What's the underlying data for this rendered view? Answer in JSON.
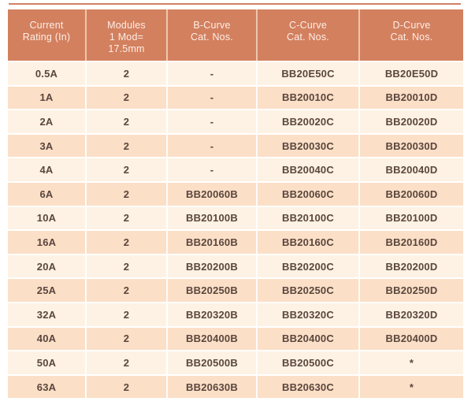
{
  "page": {
    "background": "#ffffff",
    "top_rule_color": "#d28165"
  },
  "table": {
    "colors": {
      "header_bg": "#d3805f",
      "header_text": "#fdeee6",
      "row_light": "#fdf2e4",
      "row_dark": "#fbdfc7",
      "data_text": "#5a463d"
    },
    "columns": [
      {
        "id": "current-rating",
        "lines": [
          "Current",
          "Rating (In)"
        ]
      },
      {
        "id": "modules",
        "lines": [
          "Modules",
          "1 Mod=",
          "17.5mm"
        ]
      },
      {
        "id": "b-curve",
        "lines": [
          "B-Curve",
          "Cat. Nos."
        ]
      },
      {
        "id": "c-curve",
        "lines": [
          "C-Curve",
          "Cat. Nos."
        ]
      },
      {
        "id": "d-curve",
        "lines": [
          "D-Curve",
          "Cat. Nos."
        ]
      }
    ],
    "rows": [
      [
        "0.5A",
        "2",
        "-",
        "BB20E50C",
        "BB20E50D"
      ],
      [
        "1A",
        "2",
        "-",
        "BB20010C",
        "BB20010D"
      ],
      [
        "2A",
        "2",
        "-",
        "BB20020C",
        "BB20020D"
      ],
      [
        "3A",
        "2",
        "-",
        "BB20030C",
        "BB20030D"
      ],
      [
        "4A",
        "2",
        "-",
        "BB20040C",
        "BB20040D"
      ],
      [
        "6A",
        "2",
        "BB20060B",
        "BB20060C",
        "BB20060D"
      ],
      [
        "10A",
        "2",
        "BB20100B",
        "BB20100C",
        "BB20100D"
      ],
      [
        "16A",
        "2",
        "BB20160B",
        "BB20160C",
        "BB20160D"
      ],
      [
        "20A",
        "2",
        "BB20200B",
        "BB20200C",
        "BB20200D"
      ],
      [
        "25A",
        "2",
        "BB20250B",
        "BB20250C",
        "BB20250D"
      ],
      [
        "32A",
        "2",
        "BB20320B",
        "BB20320C",
        "BB20320D"
      ],
      [
        "40A",
        "2",
        "BB20400B",
        "BB20400C",
        "BB20400D"
      ],
      [
        "50A",
        "2",
        "BB20500B",
        "BB20500C",
        "*"
      ],
      [
        "63A",
        "2",
        "BB20630B",
        "BB20630C",
        "*"
      ]
    ]
  }
}
